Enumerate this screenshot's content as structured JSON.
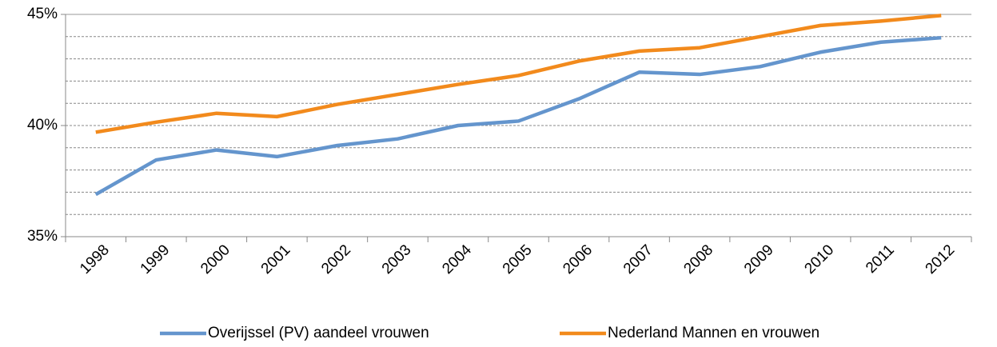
{
  "chart_data": {
    "type": "line",
    "categories": [
      "1998",
      "1999",
      "2000",
      "2001",
      "2002",
      "2003",
      "2004",
      "2005",
      "2006",
      "2007",
      "2008",
      "2009",
      "2010",
      "2011",
      "2012"
    ],
    "series": [
      {
        "name": "Overijssel (PV) aandeel vrouwen",
        "color": "#6495cd",
        "values": [
          36.9,
          38.45,
          38.9,
          38.6,
          39.1,
          39.4,
          40.0,
          40.2,
          41.2,
          42.4,
          42.3,
          42.65,
          43.3,
          43.75,
          43.95
        ]
      },
      {
        "name": "Nederland Mannen en vrouwen",
        "color": "#f28a1c",
        "values": [
          39.7,
          40.15,
          40.55,
          40.4,
          40.95,
          41.4,
          41.85,
          42.25,
          42.9,
          43.35,
          43.5,
          44.0,
          44.5,
          44.7,
          44.95
        ]
      }
    ],
    "ylim": [
      35,
      45
    ],
    "yticks": [
      {
        "value": 35,
        "label": "35%"
      },
      {
        "value": 40,
        "label": "40%"
      },
      {
        "value": 45,
        "label": "45%"
      }
    ],
    "y_minor_ticks": [
      36,
      37,
      38,
      39,
      41,
      42,
      43,
      44
    ],
    "grid": true,
    "legend": "bottom"
  }
}
